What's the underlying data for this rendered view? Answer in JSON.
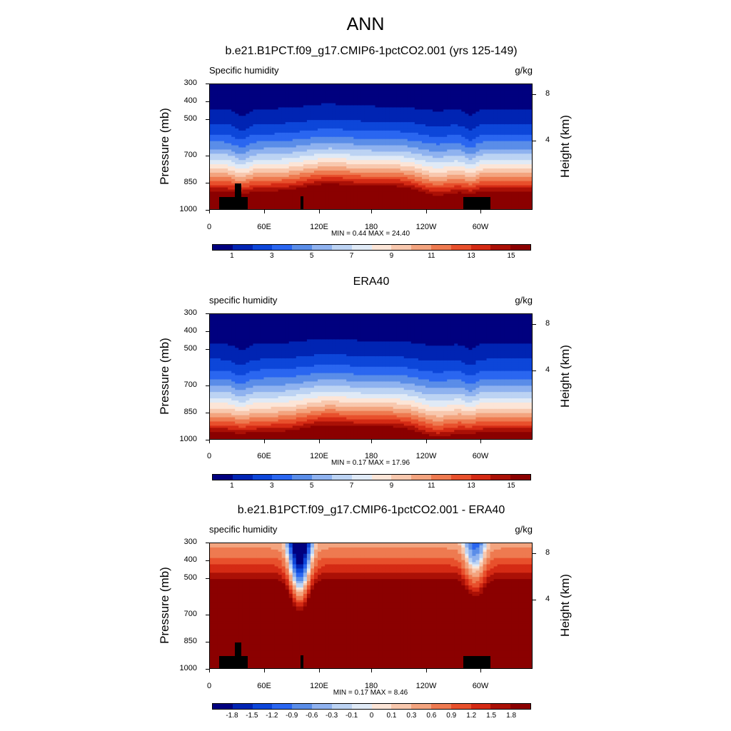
{
  "title": "ANN",
  "colors": {
    "q_levels": [
      "#00007f",
      "#0024b3",
      "#0d46d9",
      "#2a66f0",
      "#5a8de8",
      "#8fb2ef",
      "#bcd3f3",
      "#e0eaf6",
      "#fce5d7",
      "#f8c8ae",
      "#f3a47f",
      "#ee7a50",
      "#e8502c",
      "#d42a14",
      "#aa1006",
      "#8b0000"
    ],
    "diff_levels": [
      "#00007f",
      "#0024b3",
      "#0d46d9",
      "#2a66f0",
      "#5a8de8",
      "#8fb2ef",
      "#bcd3f3",
      "#e0eaf6",
      "#fce5d7",
      "#f8c8ae",
      "#f3a47f",
      "#ee7a50",
      "#e8502c",
      "#d42a14",
      "#aa1006",
      "#8b0000"
    ]
  },
  "panels": [
    {
      "title": "b.e21.B1PCT.f09_g17.CMIP6-1pctCO2.001 (yrs 125-149)",
      "var_label": "Specific humidity",
      "units": "g/kg",
      "minmax": "MIN =   0.44  MAX =  24.40",
      "cbar_labels": [
        "1",
        "3",
        "5",
        "7",
        "9",
        "11",
        "13",
        "15"
      ]
    },
    {
      "title": "ERA40",
      "var_label": "specific humidity",
      "units": "g/kg",
      "minmax": "MIN =   0.17  MAX =  17.96",
      "cbar_labels": [
        "1",
        "3",
        "5",
        "7",
        "9",
        "11",
        "13",
        "15"
      ]
    },
    {
      "title": "b.e21.B1PCT.f09_g17.CMIP6-1pctCO2.001 - ERA40",
      "var_label": "specific humidity",
      "units": "g/kg",
      "minmax": "MIN =   0.17  MAX =   8.46",
      "cbar_labels": [
        "-1.8",
        "-1.5",
        "-1.2",
        "-0.9",
        "-0.6",
        "-0.3",
        "-0.1",
        "0",
        "0.1",
        "0.3",
        "0.6",
        "0.9",
        "1.2",
        "1.5",
        "1.8"
      ]
    }
  ],
  "axes": {
    "ylabel": "Pressure (mb)",
    "ylabel_right": "Height (km)",
    "yticks": [
      "300",
      "400",
      "500",
      "700",
      "850",
      "1000"
    ],
    "yticks_right": [
      "8",
      "4"
    ],
    "xticks": [
      "0",
      "60E",
      "120E",
      "180",
      "120W",
      "60W"
    ]
  },
  "chart_data": [
    {
      "type": "heatmap",
      "title": "b.e21.B1PCT.f09_g17.CMIP6-1pctCO2.001 (yrs 125-149)",
      "xlabel": "",
      "ylabel": "Pressure (mb)",
      "x": [
        "0",
        "60E",
        "120E",
        "180",
        "120W",
        "60W"
      ],
      "y": [
        300,
        400,
        500,
        700,
        850,
        1000
      ],
      "values_range": [
        0.44,
        24.4
      ],
      "contour_levels": [
        0,
        1,
        2,
        3,
        4,
        5,
        6,
        7,
        8,
        9,
        10,
        11,
        12,
        13,
        14,
        15
      ]
    },
    {
      "type": "heatmap",
      "title": "ERA40",
      "xlabel": "",
      "ylabel": "Pressure (mb)",
      "x": [
        "0",
        "60E",
        "120E",
        "180",
        "120W",
        "60W"
      ],
      "y": [
        300,
        400,
        500,
        700,
        850,
        1000
      ],
      "values_range": [
        0.17,
        17.96
      ],
      "contour_levels": [
        0,
        1,
        2,
        3,
        4,
        5,
        6,
        7,
        8,
        9,
        10,
        11,
        12,
        13,
        14,
        15
      ]
    },
    {
      "type": "heatmap",
      "title": "b.e21.B1PCT.f09_g17.CMIP6-1pctCO2.001 - ERA40",
      "xlabel": "",
      "ylabel": "Pressure (mb)",
      "x": [
        "0",
        "60E",
        "120E",
        "180",
        "120W",
        "60W"
      ],
      "y": [
        300,
        400,
        500,
        700,
        850,
        1000
      ],
      "values_range": [
        0.17,
        8.46
      ],
      "contour_levels": [
        -1.8,
        -1.5,
        -1.2,
        -0.9,
        -0.6,
        -0.3,
        -0.1,
        0,
        0.1,
        0.3,
        0.6,
        0.9,
        1.2,
        1.5,
        1.8
      ]
    }
  ]
}
